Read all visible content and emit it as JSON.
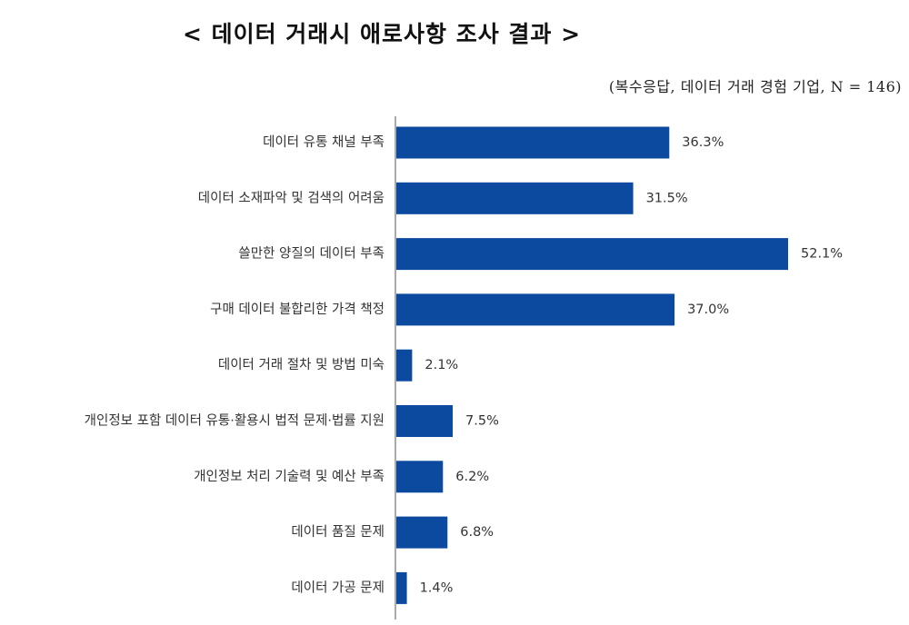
{
  "header": {
    "title": "< 데이터 거래시 애로사항 조사 결과 >",
    "note": "(복수응답, 데이터 거래 경험 기업, N = 146)"
  },
  "chart_data": {
    "type": "bar",
    "orientation": "horizontal",
    "title": "< 데이터 거래시 애로사항 조사 결과 >",
    "subtitle": "(복수응답, 데이터 거래 경험 기업, N = 146)",
    "xlabel": "",
    "ylabel": "",
    "unit": "%",
    "xlim": [
      0,
      60
    ],
    "grid": false,
    "legend": "none",
    "bar_color": "#0b4a9e",
    "categories": [
      "데이터 유통 채널 부족",
      "데이터 소재파악 및 검색의 어려움",
      "쓸만한 양질의 데이터 부족",
      "구매 데이터 불합리한 가격 책정",
      "데이터 거래 절차 및 방법 미숙",
      "개인정보 포함 데이터 유통·활용시 법적 문제·법률 지원",
      "개인정보 처리 기술력 및 예산 부족",
      "데이터 품질 문제",
      "데이터 가공 문제"
    ],
    "values": [
      36.3,
      31.5,
      52.1,
      37.0,
      2.1,
      7.5,
      6.2,
      6.8,
      1.4
    ],
    "value_labels": [
      "36.3%",
      "31.5%",
      "52.1%",
      "37.0%",
      "2.1%",
      "7.5%",
      "6.2%",
      "6.8%",
      "1.4%"
    ]
  }
}
